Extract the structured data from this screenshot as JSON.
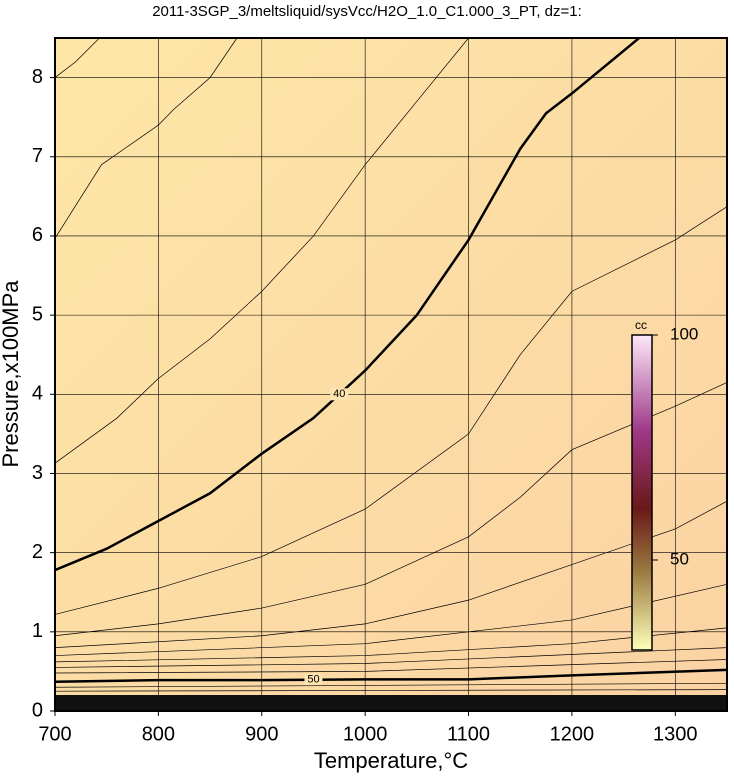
{
  "chart_data": {
    "type": "contour",
    "title": "2011-3SGP_3/meltsliquid/sysVcc/H2O_1.0_C1.000_3_PT, dz=1:",
    "x_label": "Temperature,°C",
    "y_label": "Pressure,x100MPa",
    "xlim": [
      700,
      1350
    ],
    "ylim": [
      0,
      8.5
    ],
    "xticks": [
      700,
      800,
      900,
      1000,
      1100,
      1200,
      1300
    ],
    "yticks": [
      0,
      1,
      2,
      3,
      4,
      5,
      6,
      7,
      8
    ],
    "grid": true,
    "colorbar": {
      "label": "cc",
      "lim": [
        30,
        100
      ],
      "ticks": [
        50,
        100
      ]
    },
    "contours": [
      {
        "x": [
          700,
          720,
          743
        ],
        "y": [
          8.0,
          8.2,
          8.5
        ]
      },
      {
        "x": [
          700,
          745,
          800,
          815,
          850,
          876
        ],
        "y": [
          5.97,
          6.9,
          7.4,
          7.6,
          8.0,
          8.5
        ]
      },
      {
        "x": [
          700,
          760,
          800,
          850,
          900,
          950,
          1000,
          1050,
          1100
        ],
        "y": [
          3.13,
          3.7,
          4.2,
          4.7,
          5.3,
          6.0,
          6.9,
          7.7,
          8.5
        ]
      },
      {
        "level": 40,
        "x": [
          700,
          750,
          800,
          850,
          900,
          950,
          1000,
          1050,
          1100,
          1150,
          1175,
          1200,
          1265
        ],
        "y": [
          1.78,
          2.05,
          2.4,
          2.75,
          3.25,
          3.7,
          4.3,
          5.0,
          5.95,
          7.1,
          7.55,
          7.8,
          8.5
        ]
      },
      {
        "x": [
          700,
          800,
          900,
          1000,
          1100,
          1150,
          1200,
          1300,
          1350
        ],
        "y": [
          1.22,
          1.55,
          1.95,
          2.55,
          3.5,
          4.5,
          5.3,
          5.95,
          6.37
        ]
      },
      {
        "x": [
          700,
          800,
          900,
          1000,
          1100,
          1150,
          1200,
          1300,
          1350
        ],
        "y": [
          0.95,
          1.1,
          1.3,
          1.6,
          2.2,
          2.7,
          3.3,
          3.85,
          4.15
        ]
      },
      {
        "x": [
          700,
          900,
          1000,
          1100,
          1200,
          1300,
          1350
        ],
        "y": [
          0.8,
          0.95,
          1.1,
          1.4,
          1.85,
          2.3,
          2.65
        ]
      },
      {
        "x": [
          700,
          1000,
          1200,
          1350
        ],
        "y": [
          0.7,
          0.85,
          1.15,
          1.6
        ]
      },
      {
        "x": [
          700,
          1000,
          1200,
          1350
        ],
        "y": [
          0.62,
          0.7,
          0.85,
          1.05
        ]
      },
      {
        "x": [
          700,
          1000,
          1350
        ],
        "y": [
          0.55,
          0.6,
          0.8
        ]
      },
      {
        "x": [
          700,
          1000,
          1350
        ],
        "y": [
          0.48,
          0.5,
          0.65
        ]
      },
      {
        "level": 50,
        "x": [
          700,
          800,
          900,
          1000,
          1100,
          1200,
          1350
        ],
        "y": [
          0.37,
          0.39,
          0.39,
          0.4,
          0.4,
          0.45,
          0.52
        ]
      },
      {
        "x": [
          700,
          1350
        ],
        "y": [
          0.3,
          0.35
        ]
      },
      {
        "x": [
          700,
          1350
        ],
        "y": [
          0.25,
          0.27
        ]
      }
    ]
  }
}
